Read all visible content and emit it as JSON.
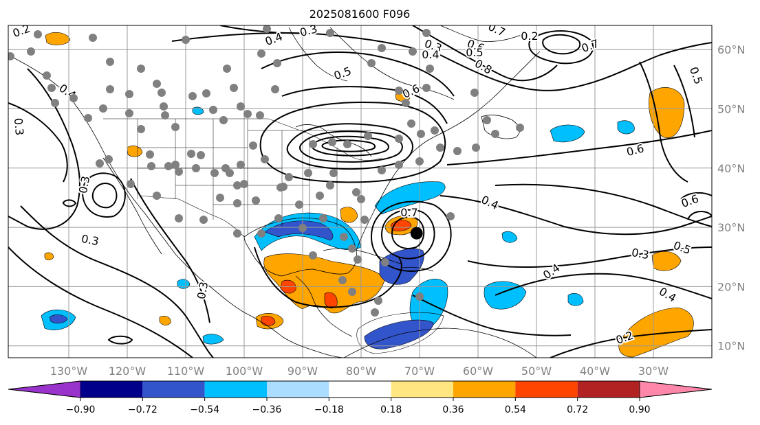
{
  "title": "2025081600 F096",
  "map": {
    "lat_labels": [
      "60°N",
      "50°N",
      "40°N",
      "30°N",
      "20°N",
      "10°N"
    ],
    "lon_labels": [
      "130°W",
      "120°W",
      "110°W",
      "100°W",
      "90°W",
      "80°W",
      "70°W",
      "60°W",
      "50°W",
      "40°W",
      "30°W"
    ],
    "contour_labels": [
      "0.2",
      "0.3",
      "0.4",
      "0.5",
      "0.6",
      "0.7",
      "0.8",
      "0.3",
      "0.4",
      "0.5",
      "0.6",
      "0.7",
      "0.2",
      "0.4",
      "0.6",
      "0.3",
      "0.5",
      "0.6",
      "0.3",
      "0.4",
      "0.5",
      "0.4",
      "0.2",
      "0.3",
      "0.7",
      "0.3",
      "0.3",
      "0.4"
    ],
    "storm_marker": {
      "name": "tropical-cyclone-center",
      "lon": -70.5,
      "lat": 29.0
    },
    "colors": {
      "contour": "#000000",
      "grid": "#999999",
      "coast": "#000000",
      "station_dot": "#808080",
      "axis_text": "#808080"
    }
  },
  "colorbar": {
    "tick_labels": [
      "−0.90",
      "−0.72",
      "−0.54",
      "−0.36",
      "−0.18",
      "0.18",
      "0.36",
      "0.54",
      "0.72",
      "0.90"
    ],
    "segments": [
      "#9933cc",
      "#00008b",
      "#3355cc",
      "#00bfff",
      "#aaddff",
      "#ffffff",
      "#ffe680",
      "#ffa500",
      "#ff4500",
      "#b22222",
      "#ff88aa"
    ]
  }
}
